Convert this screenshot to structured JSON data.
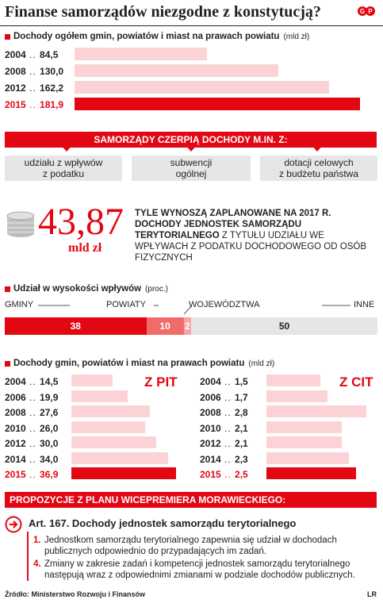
{
  "title": "Finanse samorządów niezgodne z konstytucją?",
  "section1": {
    "heading": "Dochody ogółem gmin, powiatów i miast na prawach powiatu",
    "unit": "(mld zł)"
  },
  "chart_data": [
    {
      "type": "bar",
      "title": "Dochody ogółem gmin, powiatów i miast na prawach powiatu",
      "ylabel": "(mld zł)",
      "categories": [
        "2004",
        "2008",
        "2012",
        "2015"
      ],
      "values": [
        84.5,
        130.0,
        162.2,
        181.9
      ],
      "labels": [
        "84,5",
        "130,0",
        "162,2",
        "181,9"
      ],
      "highlight": "2015"
    },
    {
      "type": "bar",
      "title": "Udział w wysokości wpływów",
      "ylabel": "(proc.)",
      "categories": [
        "GMINY",
        "POWIATY",
        "WOJEWÓDZTWA",
        "INNE"
      ],
      "values": [
        38,
        10,
        2,
        50
      ],
      "labels": [
        "38",
        "10",
        "2",
        "50"
      ],
      "stacked": true
    },
    {
      "type": "bar",
      "title": "Z PIT",
      "categories": [
        "2004",
        "2006",
        "2008",
        "2010",
        "2012",
        "2014",
        "2015"
      ],
      "values": [
        14.5,
        19.9,
        27.6,
        26.0,
        30.0,
        34.0,
        36.9
      ],
      "labels": [
        "14,5",
        "19,9",
        "27,6",
        "26,0",
        "30,0",
        "34,0",
        "36,9"
      ],
      "highlight": "2015"
    },
    {
      "type": "bar",
      "title": "Z CIT",
      "categories": [
        "2004",
        "2006",
        "2008",
        "2010",
        "2012",
        "2014",
        "2015"
      ],
      "values": [
        1.5,
        1.7,
        2.8,
        2.1,
        2.1,
        2.3,
        2.5
      ],
      "labels": [
        "1,5",
        "1,7",
        "2,8",
        "2,1",
        "2,1",
        "2,3",
        "2,5"
      ],
      "highlight": "2015"
    }
  ],
  "section2": {
    "banner": "SAMORZĄDY CZERPIĄ DOCHODY M.IN. Z:",
    "boxes": [
      "udziału z wpływów\nz podatku",
      "subwencji\nogólnej",
      "dotacji celowych\nz budżetu państwa"
    ]
  },
  "section3": {
    "big_number": "43,87",
    "big_unit": "mld zł",
    "text_bold": "TYLE WYNOSZĄ ZAPLANOWANE NA 2017 R. DOCHODY JEDNOSTEK SAMORZĄDU TERYTORIALNEGO",
    "text_rest": " Z TYTUŁU UDZIAŁU WE WPŁYWACH Z PODATKU DOCHODOWEGO OD OSÓB FIZYCZNYCH"
  },
  "section4": {
    "heading": "Udział w wysokości wpływów",
    "unit": "(proc.)"
  },
  "section5": {
    "heading": "Dochody gmin, powiatów i miast na prawach powiatu",
    "unit": "(mld zł)",
    "pit_label": "Z PIT",
    "cit_label": "Z CIT"
  },
  "section6": {
    "banner": "PROPOZYCJE Z PLANU WICEPREMIERA MORAWIECKIEGO:",
    "art_title": "Art.  167. Dochody jednostek samorządu terytorialnego",
    "p1_num": "1.",
    "p1": "Jednostkom samorządu terytorialnego zapewnia się udział w dochodach publicznych odpowiednio do przypadających im zadań.",
    "p4_num": "4.",
    "p4": "Zmiany w zakresie zadań i kompetencji jednostek samorządu terytorialnego następują wraz z odpowiednimi zmianami w podziale dochodów publicznych."
  },
  "footer": {
    "source": "Źródło: Ministerstwo Rozwoju i Finansów",
    "credit": "LR"
  },
  "colors": {
    "red": "#e30613",
    "pink": "#fbd3d6",
    "grey": "#e6e6e6"
  }
}
